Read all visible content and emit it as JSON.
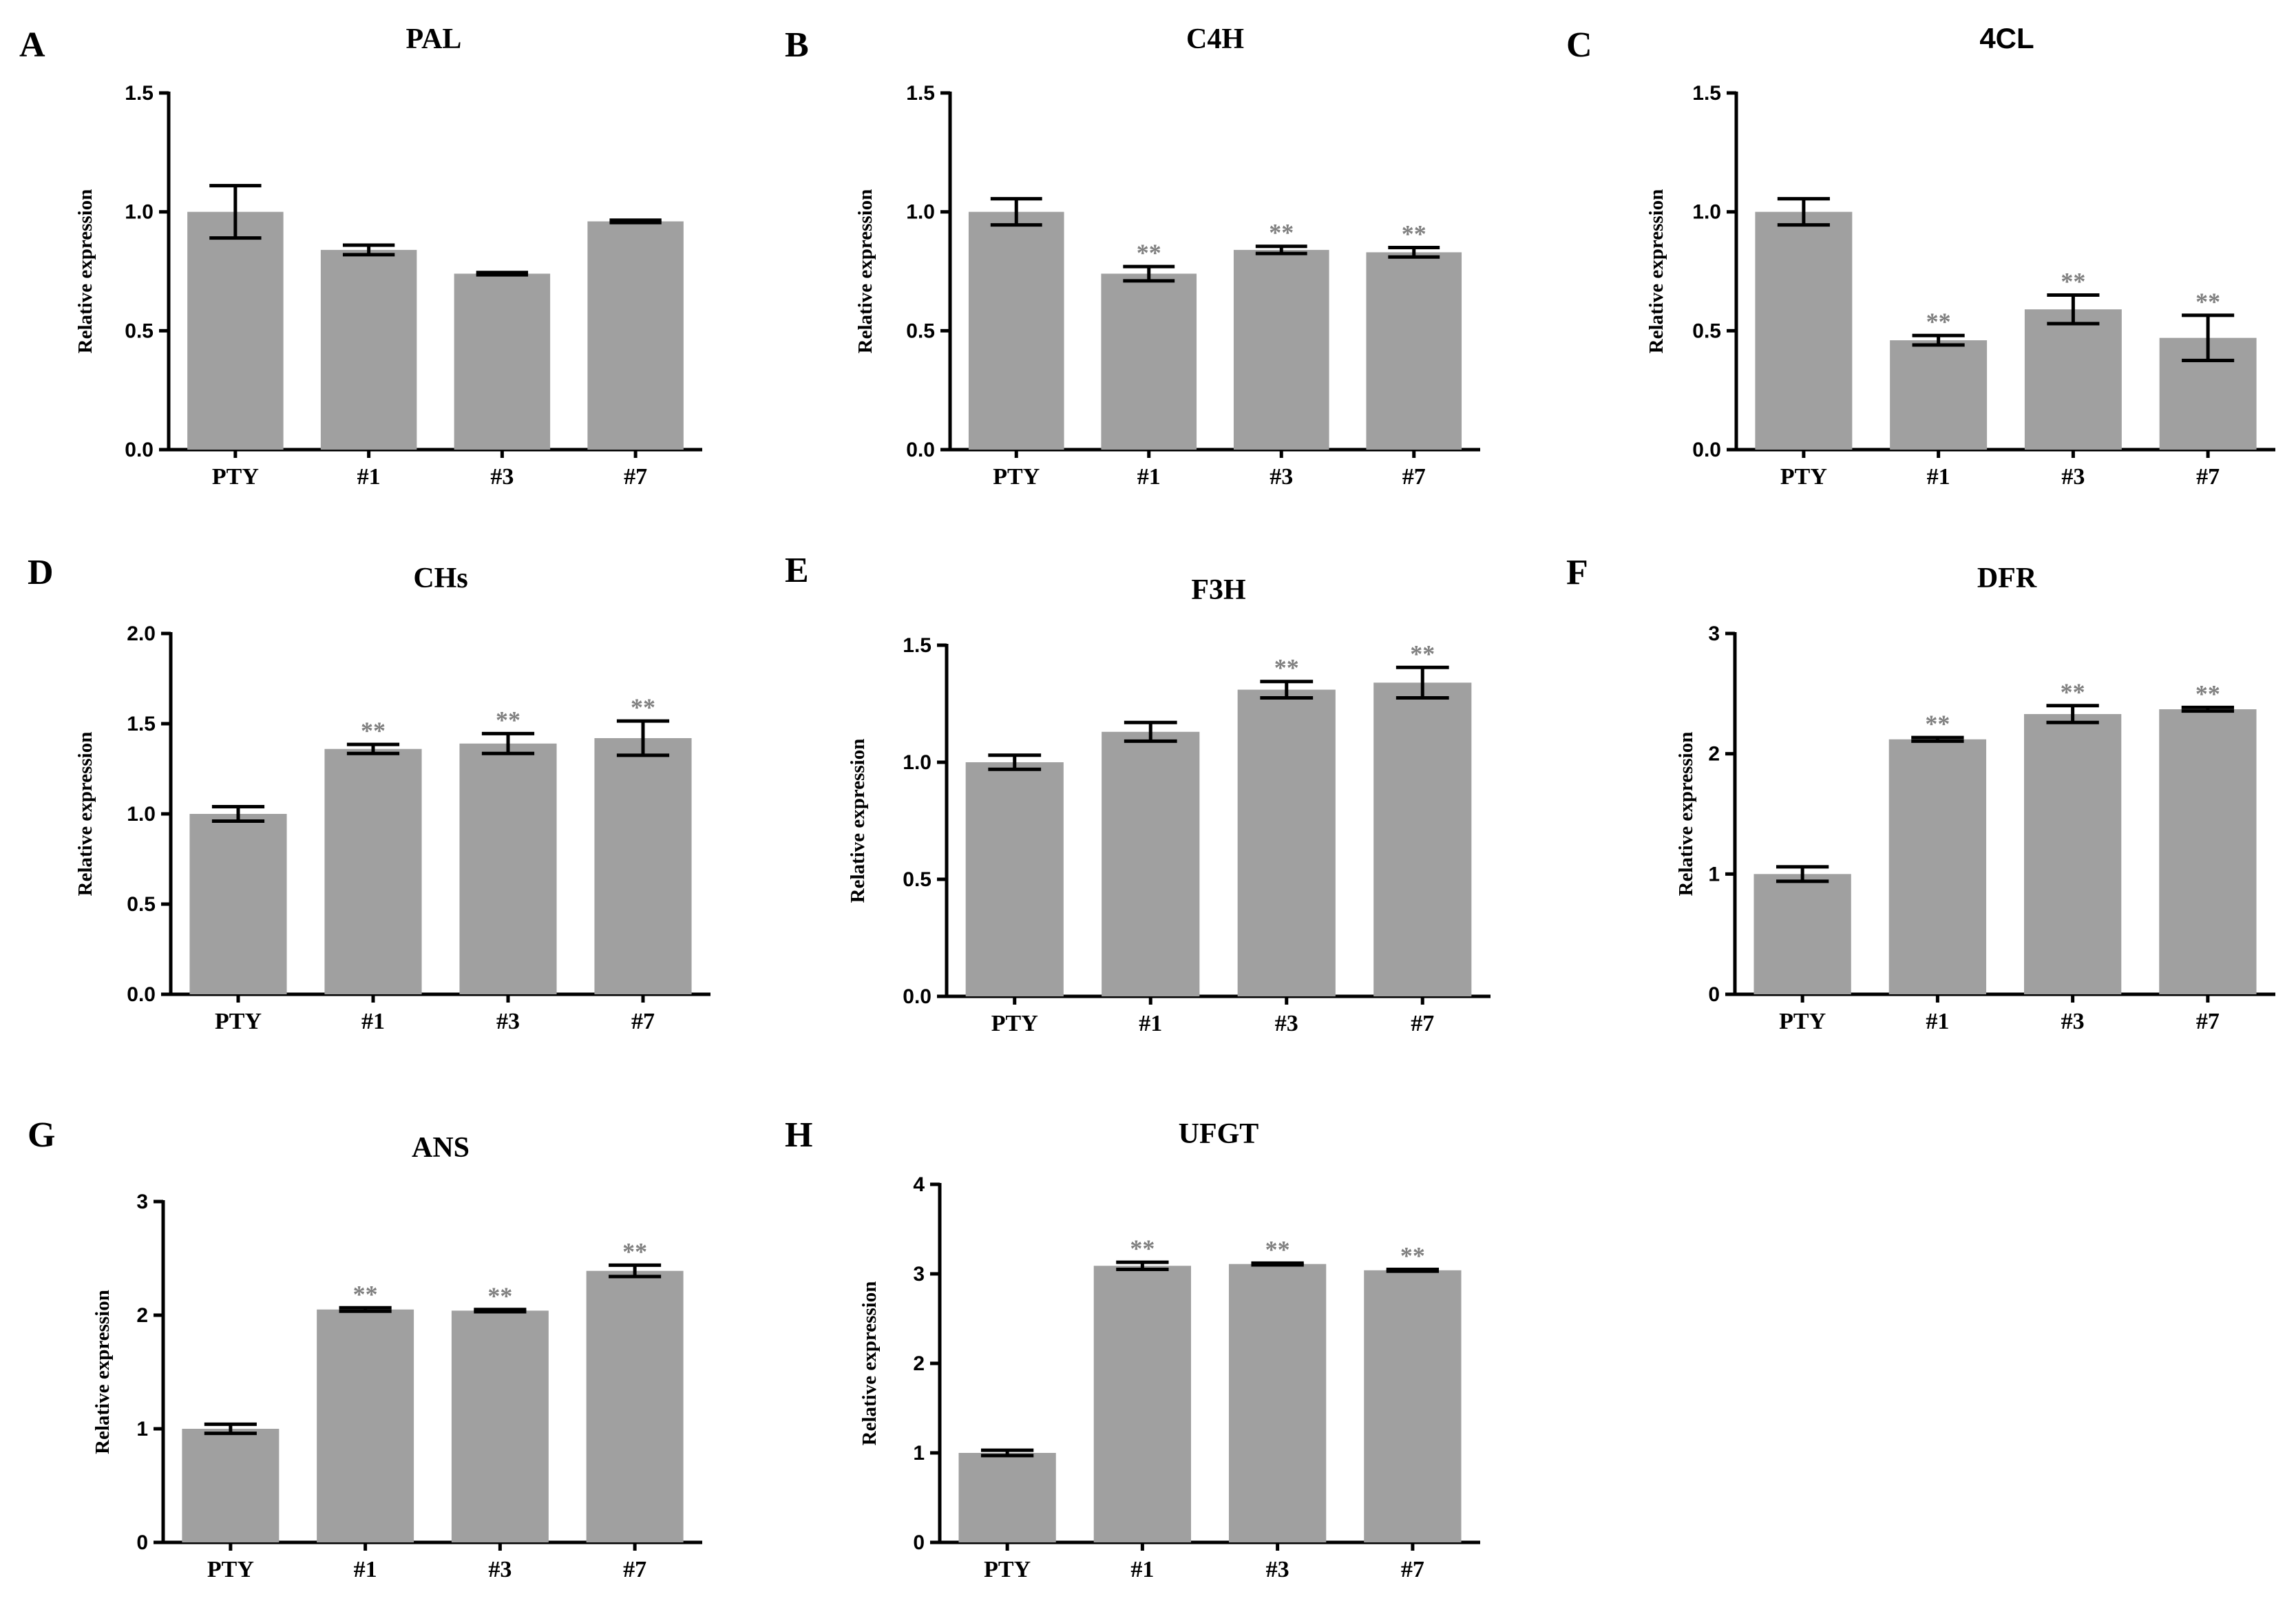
{
  "chart_data": [
    {
      "panel": "A",
      "title": "PAL",
      "type": "bar",
      "ylabel": "Relative expression",
      "categories": [
        "PTY",
        "#1",
        "#3",
        "#7"
      ],
      "values": [
        1.0,
        0.84,
        0.74,
        0.96
      ],
      "errors": [
        0.11,
        0.02,
        0.005,
        0.005
      ],
      "sig": [
        "",
        "",
        "",
        ""
      ],
      "ylim": [
        0,
        1.5
      ],
      "yticks": [
        "0.0",
        "0.5",
        "1.0",
        "1.5"
      ]
    },
    {
      "panel": "B",
      "title": "C4H",
      "type": "bar",
      "ylabel": "Relative expression",
      "categories": [
        "PTY",
        "#1",
        "#3",
        "#7"
      ],
      "values": [
        1.0,
        0.74,
        0.84,
        0.83
      ],
      "errors": [
        0.055,
        0.03,
        0.015,
        0.02
      ],
      "sig": [
        "",
        "**",
        "**",
        "**"
      ],
      "ylim": [
        0,
        1.5
      ],
      "yticks": [
        "0.0",
        "0.5",
        "1.0",
        "1.5"
      ]
    },
    {
      "panel": "C",
      "title": "4CL",
      "type": "bar",
      "ylabel": "Relative expression",
      "categories": [
        "PTY",
        "#1",
        "#3",
        "#7"
      ],
      "values": [
        1.0,
        0.46,
        0.59,
        0.47
      ],
      "errors": [
        0.055,
        0.02,
        0.06,
        0.095
      ],
      "sig": [
        "",
        "**",
        "**",
        "**"
      ],
      "ylim": [
        0,
        1.5
      ],
      "yticks": [
        "0.0",
        "0.5",
        "1.0",
        "1.5"
      ]
    },
    {
      "panel": "D",
      "title": "CHs",
      "type": "bar",
      "ylabel": "Relative expression",
      "categories": [
        "PTY",
        "#1",
        "#3",
        "#7"
      ],
      "values": [
        1.0,
        1.36,
        1.39,
        1.42
      ],
      "errors": [
        0.04,
        0.025,
        0.055,
        0.095
      ],
      "sig": [
        "",
        "**",
        "**",
        "**"
      ],
      "ylim": [
        0,
        2.0
      ],
      "yticks": [
        "0.0",
        "0.5",
        "1.0",
        "1.5",
        "2.0"
      ]
    },
    {
      "panel": "E",
      "title": "F3H",
      "type": "bar",
      "ylabel": "Relative expression",
      "categories": [
        "PTY",
        "#1",
        "#3",
        "#7"
      ],
      "values": [
        1.0,
        1.13,
        1.31,
        1.34
      ],
      "errors": [
        0.03,
        0.04,
        0.035,
        0.065
      ],
      "sig": [
        "",
        "",
        "**",
        "**"
      ],
      "ylim": [
        0,
        1.5
      ],
      "yticks": [
        "0.0",
        "0.5",
        "1.0",
        "1.5"
      ]
    },
    {
      "panel": "F",
      "title": "DFR",
      "type": "bar",
      "ylabel": "Relative expression",
      "categories": [
        "PTY",
        "#1",
        "#3",
        "#7"
      ],
      "values": [
        1.0,
        2.12,
        2.33,
        2.37
      ],
      "errors": [
        0.06,
        0.015,
        0.07,
        0.015
      ],
      "sig": [
        "",
        "**",
        "**",
        "**"
      ],
      "ylim": [
        0,
        3
      ],
      "yticks": [
        "0",
        "1",
        "2",
        "3"
      ]
    },
    {
      "panel": "G",
      "title": "ANS",
      "type": "bar",
      "ylabel": "Relative expression",
      "categories": [
        "PTY",
        "#1",
        "#3",
        "#7"
      ],
      "values": [
        1.0,
        2.05,
        2.04,
        2.39
      ],
      "errors": [
        0.04,
        0.015,
        0.01,
        0.05
      ],
      "sig": [
        "",
        "**",
        "**",
        "**"
      ],
      "ylim": [
        0,
        3
      ],
      "yticks": [
        "0",
        "1",
        "2",
        "3"
      ]
    },
    {
      "panel": "H",
      "title": "UFGT",
      "type": "bar",
      "ylabel": "Relative expression",
      "categories": [
        "PTY",
        "#1",
        "#3",
        "#7"
      ],
      "values": [
        1.0,
        3.09,
        3.11,
        3.04
      ],
      "errors": [
        0.03,
        0.04,
        0.01,
        0.01
      ],
      "sig": [
        "",
        "**",
        "**",
        "**"
      ],
      "ylim": [
        0,
        4
      ],
      "yticks": [
        "0",
        "1",
        "2",
        "3",
        "4"
      ]
    }
  ]
}
